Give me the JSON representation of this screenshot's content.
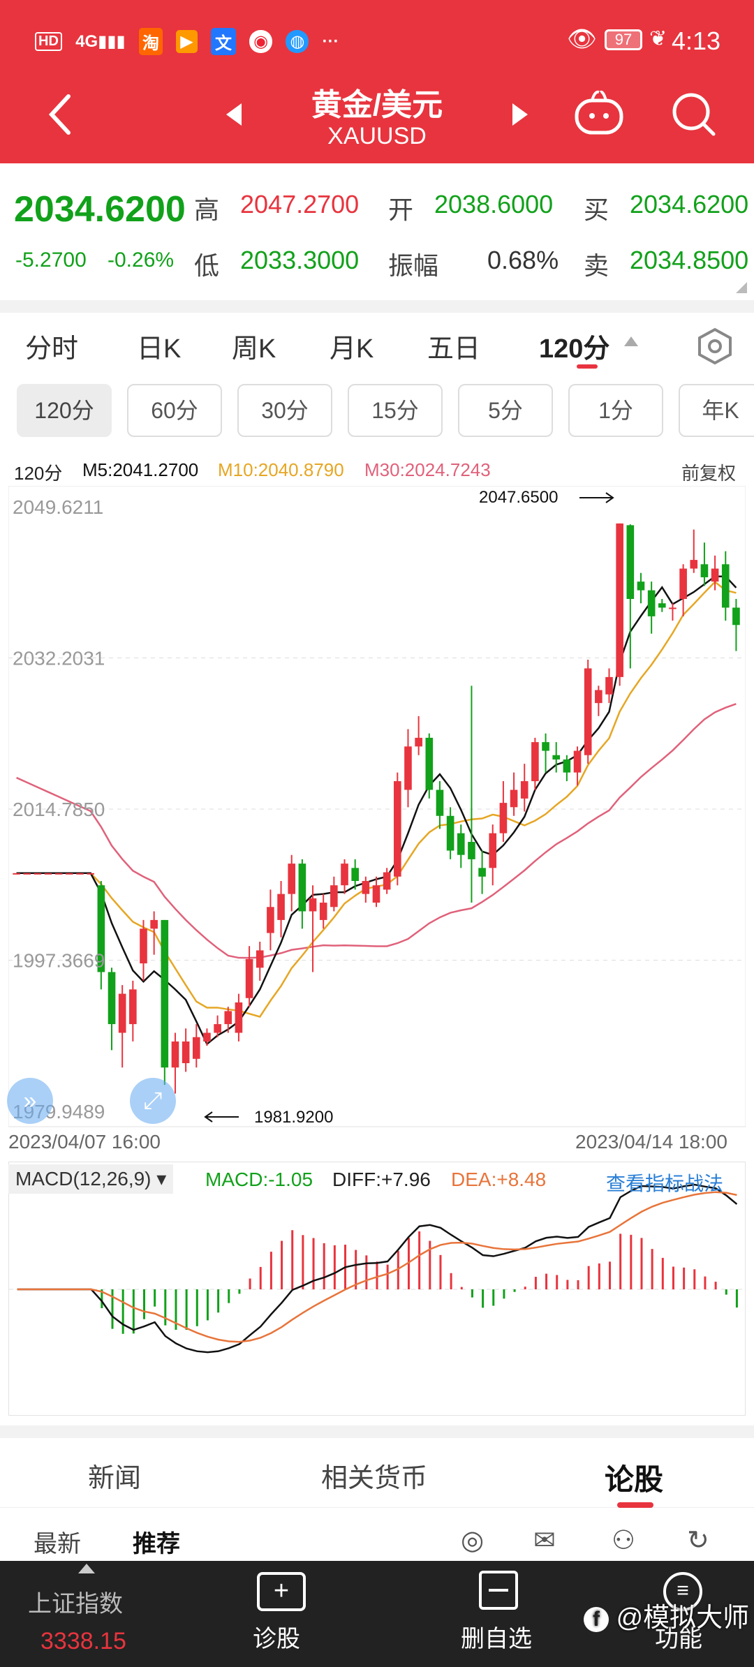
{
  "status_bar": {
    "left_icons": [
      "HD",
      "4G",
      "signal-icon",
      "taobao-icon",
      "video-icon",
      "translate-icon",
      "weibo-icon",
      "browser-icon",
      "..."
    ],
    "battery": "97",
    "time": "4:13"
  },
  "header": {
    "title": "黄金/美元",
    "subtitle": "XAUUSD"
  },
  "quote": {
    "price": "2034.6200",
    "change": "-5.2700",
    "change_pct": "-0.26%",
    "high_label": "高",
    "high": "2047.2700",
    "open_label": "开",
    "open": "2038.6000",
    "buy_label": "买",
    "buy": "2034.6200",
    "low_label": "低",
    "low": "2033.3000",
    "amp_label": "振幅",
    "amp": "0.68%",
    "sell_label": "卖",
    "sell": "2034.8500"
  },
  "tabs": [
    "分时",
    "日K",
    "周K",
    "月K",
    "五日",
    "120分"
  ],
  "active_tab": "120分",
  "periods": [
    "120分",
    "60分",
    "30分",
    "15分",
    "5分",
    "1分",
    "年K"
  ],
  "ma_line": {
    "period": "120分",
    "m5": "M5:2041.2700",
    "m10": "M10:2040.8790",
    "m30": "M30:2024.7243",
    "adjust": "前复权"
  },
  "chart_data": {
    "type": "candlestick",
    "y_labels": [
      "2049.6211",
      "2032.2031",
      "2014.7850",
      "1997.3669",
      "1979.9489"
    ],
    "ylim": [
      1979.9489,
      2049.6211
    ],
    "max_marker": "2047.6500",
    "min_marker": "1981.9200",
    "x_start": "2023/04/07 16:00",
    "x_end": "2023/04/14 18:00",
    "candles": [
      [
        2007.4,
        2007.4,
        2007.4,
        2007.4
      ],
      [
        2007.4,
        2007.4,
        2007.4,
        2007.4
      ],
      [
        2007.4,
        2007.4,
        2007.4,
        2007.4
      ],
      [
        2007.4,
        2007.4,
        2007.4,
        2007.4
      ],
      [
        2007.4,
        2007.4,
        2007.4,
        2007.4
      ],
      [
        2007.4,
        2007.4,
        2007.4,
        2007.4
      ],
      [
        2007.4,
        2007.4,
        2007.4,
        2007.4
      ],
      [
        2007.4,
        2007.4,
        2007.4,
        2007.4
      ],
      [
        2006.0,
        1996.0,
        2006.5,
        1994.0
      ],
      [
        1996.0,
        1990.0,
        1996.5,
        1987.0
      ],
      [
        1989.0,
        1993.5,
        1994.5,
        1985.0
      ],
      [
        1990.0,
        1994.0,
        1995.0,
        1988.0
      ],
      [
        1997.0,
        2001.0,
        2002.0,
        1995.0
      ],
      [
        2001.0,
        2002.0,
        2003.0,
        1998.0
      ],
      [
        2002.0,
        1985.0,
        2002.0,
        1983.0
      ],
      [
        1985.0,
        1988.0,
        1989.0,
        1982.0
      ],
      [
        1985.5,
        1988.0,
        1989.5,
        1984.5
      ],
      [
        1986.0,
        1988.5,
        1990.0,
        1985.0
      ],
      [
        1988.0,
        1989.0,
        1989.5,
        1987.5
      ],
      [
        1989.0,
        1990.0,
        1991.0,
        1988.5
      ],
      [
        1990.0,
        1991.5,
        1992.0,
        1989.0
      ],
      [
        1989.0,
        1992.5,
        1993.5,
        1988.0
      ],
      [
        1993.0,
        1997.5,
        1999.0,
        1992.0
      ],
      [
        1996.5,
        1998.5,
        1999.5,
        1995.0
      ],
      [
        2000.5,
        2003.5,
        2005.5,
        1998.5
      ],
      [
        2002.0,
        2005.0,
        2006.5,
        2000.0
      ],
      [
        2005.0,
        2008.5,
        2009.5,
        2003.0
      ],
      [
        2008.5,
        2003.0,
        2009.0,
        2001.0
      ],
      [
        2003.0,
        2004.5,
        2006.0,
        1996.0
      ],
      [
        2002.0,
        2004.0,
        2005.0,
        2001.0
      ],
      [
        2003.5,
        2006.0,
        2007.0,
        2003.0
      ],
      [
        2006.0,
        2008.5,
        2009.0,
        2005.0
      ],
      [
        2008.0,
        2006.5,
        2009.0,
        2005.5
      ],
      [
        2005.0,
        2006.5,
        2007.0,
        2004.0
      ],
      [
        2004.0,
        2006.0,
        2007.0,
        2003.5
      ],
      [
        2005.5,
        2007.5,
        2008.0,
        2005.0
      ],
      [
        2007.0,
        2018.0,
        2019.0,
        2006.0
      ],
      [
        2017.0,
        2022.0,
        2024.0,
        2015.0
      ],
      [
        2022.0,
        2023.0,
        2025.5,
        2021.0
      ],
      [
        2023.0,
        2017.0,
        2023.5,
        2016.0
      ],
      [
        2017.0,
        2014.0,
        2018.0,
        2012.5
      ],
      [
        2014.0,
        2010.0,
        2015.0,
        2009.0
      ],
      [
        2012.0,
        2009.5,
        2013.0,
        2008.0
      ],
      [
        2011.0,
        2009.0,
        2029.0,
        2004.0
      ],
      [
        2008.0,
        2007.0,
        2010.0,
        2005.0
      ],
      [
        2008.0,
        2012.0,
        2013.0,
        2006.0
      ],
      [
        2012.0,
        2015.5,
        2018.0,
        2011.0
      ],
      [
        2015.0,
        2017.0,
        2019.0,
        2014.0
      ],
      [
        2016.0,
        2018.0,
        2020.0,
        2014.5
      ],
      [
        2018.0,
        2022.5,
        2023.0,
        2017.0
      ],
      [
        2022.5,
        2021.5,
        2023.5,
        2019.0
      ],
      [
        2021.0,
        2020.5,
        2022.5,
        2019.0
      ],
      [
        2020.5,
        2019.0,
        2021.0,
        2018.0
      ],
      [
        2019.0,
        2021.5,
        2022.0,
        2017.5
      ],
      [
        2021.0,
        2031.0,
        2032.0,
        2020.0
      ],
      [
        2027.0,
        2028.5,
        2029.0,
        2025.5
      ],
      [
        2028.0,
        2030.0,
        2031.0,
        2027.0
      ],
      [
        2030.0,
        2047.7,
        2047.7,
        2029.0
      ],
      [
        2047.5,
        2039.0,
        2047.6,
        2031.0
      ],
      [
        2041.0,
        2040.0,
        2042.0,
        2038.5
      ],
      [
        2040.0,
        2037.0,
        2041.0,
        2035.0
      ],
      [
        2038.5,
        2038.0,
        2039.0,
        2037.5
      ],
      [
        2038.0,
        2038.0,
        2038.5,
        2036.5
      ],
      [
        2039.0,
        2042.5,
        2043.0,
        2037.0
      ],
      [
        2042.5,
        2043.5,
        2047.0,
        2042.0
      ],
      [
        2043.0,
        2041.5,
        2045.5,
        2040.5
      ],
      [
        2041.0,
        2042.5,
        2044.0,
        2040.0
      ],
      [
        2043.0,
        2038.0,
        2044.5,
        2036.5
      ],
      [
        2038.0,
        2036.0,
        2039.0,
        2033.0
      ]
    ],
    "ma5_legend": "M5",
    "ma10_legend": "M10",
    "ma30_legend": "M30",
    "colors": {
      "up": "#e8343e",
      "down": "#11a11a",
      "ma5": "#111111",
      "ma10": "#e6a623",
      "ma30": "#e0617a",
      "grid": "#dddddd"
    }
  },
  "macd": {
    "selector": "MACD(12,26,9)",
    "macd": "MACD:-1.05",
    "diff": "DIFF:+7.96",
    "dea": "DEA:+8.48",
    "link": "查看指标战法"
  },
  "news_tabs": [
    "新闻",
    "相关货币",
    "论股"
  ],
  "news_active": "论股",
  "sub_tabs": [
    "最新",
    "推荐"
  ],
  "bottom_nav": {
    "index_name": "上证指数",
    "index_value": "3338.15",
    "diag": "诊股",
    "remove": "删自选",
    "func": "功能",
    "watermark": "@模拟大师"
  }
}
